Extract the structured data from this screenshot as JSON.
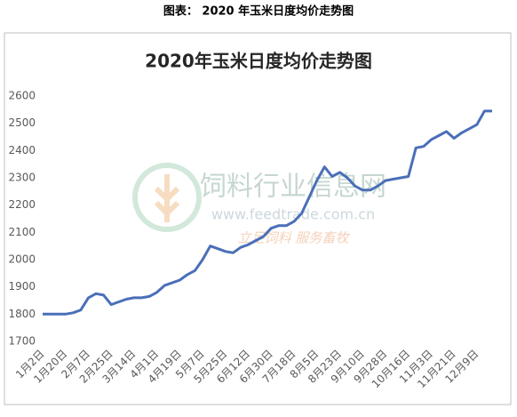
{
  "caption": "图表： 2020 年玉米日度均价走势图",
  "watermark": {
    "name": "饲料行业信息网",
    "url": "www.feedtrade.com.cn",
    "slogan": "立足饲料  服务畜牧"
  },
  "chart_data": {
    "type": "line",
    "title": "2020年玉米日度均价走势图",
    "categories": [
      "1月2日",
      null,
      null,
      "1月20日",
      null,
      null,
      "2月7日",
      null,
      null,
      "2月25日",
      null,
      null,
      "3月14日",
      null,
      null,
      "4月1日",
      null,
      null,
      "4月19日",
      null,
      null,
      "5月7日",
      null,
      null,
      "5月25日",
      null,
      null,
      "6月12日",
      null,
      null,
      "6月30日",
      null,
      null,
      "7月18日",
      null,
      null,
      "8月5日",
      null,
      null,
      "8月23日",
      null,
      null,
      "9月10日",
      null,
      null,
      "9月28日",
      null,
      null,
      "10月16日",
      null,
      null,
      "11月3日",
      null,
      null,
      "11月21日",
      null,
      null,
      "12月9日",
      null,
      null
    ],
    "values": [
      1800,
      1800,
      1800,
      1800,
      1805,
      1815,
      1860,
      1875,
      1870,
      1835,
      1845,
      1855,
      1860,
      1860,
      1865,
      1880,
      1905,
      1915,
      1925,
      1945,
      1960,
      2000,
      2050,
      2040,
      2030,
      2025,
      2045,
      2055,
      2070,
      2085,
      2115,
      2125,
      2125,
      2140,
      2170,
      2230,
      2290,
      2340,
      2305,
      2320,
      2300,
      2270,
      2255,
      2255,
      2270,
      2290,
      2295,
      2300,
      2305,
      2410,
      2415,
      2440,
      2455,
      2470,
      2445,
      2465,
      2480,
      2495,
      2545,
      2545
    ],
    "color": "#4a6fb8",
    "ylim": [
      1700,
      2600
    ],
    "yticks": [
      1700,
      1800,
      1900,
      2000,
      2100,
      2200,
      2300,
      2400,
      2500,
      2600
    ],
    "grid": false
  }
}
